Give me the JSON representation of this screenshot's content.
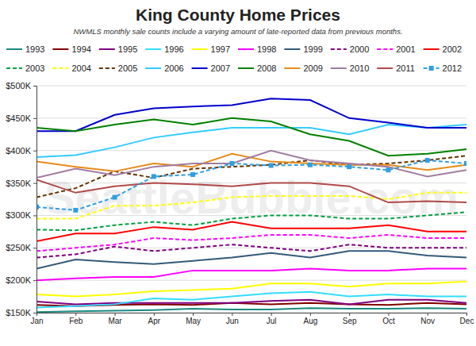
{
  "chart_data": {
    "type": "line",
    "title": "King County Home Prices",
    "subtitle": "NWMLS monthly sale counts include a varying amount of late-reported data from previous months.",
    "annotations": [
      "SeattleBubble.com"
    ],
    "categories": [
      "Jan",
      "Feb",
      "Mar",
      "Apr",
      "May",
      "Jun",
      "Jul",
      "Aug",
      "Sep",
      "Oct",
      "Nov",
      "Dec"
    ],
    "ylim": [
      150000,
      500000
    ],
    "yticks": [
      {
        "value": 150000,
        "label": "$150K"
      },
      {
        "value": 200000,
        "label": "$200K"
      },
      {
        "value": 250000,
        "label": "$250K"
      },
      {
        "value": 300000,
        "label": "$300K"
      },
      {
        "value": 350000,
        "label": "$350K"
      },
      {
        "value": 400000,
        "label": "$400K"
      },
      {
        "value": 450000,
        "label": "$450K"
      },
      {
        "value": 500000,
        "label": "$500K"
      }
    ],
    "grid": true,
    "legend": "top",
    "series": [
      {
        "name": "1993",
        "color": "#1a8a80",
        "line_style": "solid",
        "values": [
          151000,
          152000,
          153000,
          154000,
          156000,
          155000,
          155000,
          157000,
          156000,
          156000,
          157000,
          156000
        ]
      },
      {
        "name": "1994",
        "color": "#800000",
        "line_style": "solid",
        "values": [
          162000,
          160000,
          162000,
          163000,
          162000,
          165000,
          163000,
          165000,
          163000,
          162000,
          165000,
          163000
        ]
      },
      {
        "name": "1995",
        "color": "#800080",
        "line_style": "solid",
        "values": [
          167000,
          163000,
          165000,
          165000,
          165000,
          165000,
          168000,
          170000,
          163000,
          170000,
          170000,
          165000
        ]
      },
      {
        "name": "1996",
        "color": "#33ddff",
        "line_style": "solid",
        "values": [
          158000,
          160000,
          163000,
          172000,
          170000,
          175000,
          180000,
          182000,
          175000,
          178000,
          175000,
          175000
        ]
      },
      {
        "name": "1997",
        "color": "#ffff00",
        "line_style": "solid",
        "values": [
          178000,
          175000,
          178000,
          183000,
          185000,
          187000,
          195000,
          195000,
          190000,
          195000,
          195000,
          198000
        ]
      },
      {
        "name": "1998",
        "color": "#ff00ff",
        "line_style": "solid",
        "values": [
          200000,
          203000,
          205000,
          205000,
          215000,
          215000,
          215000,
          218000,
          215000,
          215000,
          218000,
          218000
        ]
      },
      {
        "name": "1999",
        "color": "#34597a",
        "line_style": "solid",
        "values": [
          218000,
          232000,
          228000,
          225000,
          230000,
          235000,
          242000,
          235000,
          245000,
          245000,
          238000,
          235000
        ]
      },
      {
        "name": "2000",
        "color": "#800080",
        "line_style": "dashed",
        "values": [
          235000,
          240000,
          252000,
          245000,
          250000,
          255000,
          250000,
          245000,
          255000,
          250000,
          250000,
          250000
        ]
      },
      {
        "name": "2001",
        "color": "#ff00ff",
        "line_style": "dashed",
        "values": [
          245000,
          250000,
          255000,
          265000,
          262000,
          265000,
          270000,
          270000,
          265000,
          270000,
          265000,
          265000
        ]
      },
      {
        "name": "2002",
        "color": "#ff0000",
        "line_style": "solid",
        "values": [
          260000,
          272000,
          272000,
          282000,
          278000,
          290000,
          280000,
          280000,
          280000,
          285000,
          275000,
          275000
        ]
      },
      {
        "name": "2003",
        "color": "#00a040",
        "line_style": "dashed",
        "values": [
          278000,
          277000,
          285000,
          290000,
          285000,
          295000,
          300000,
          300000,
          295000,
          295000,
          300000,
          305000
        ]
      },
      {
        "name": "2004",
        "color": "#ffff00",
        "line_style": "dashed",
        "values": [
          295000,
          295000,
          315000,
          315000,
          320000,
          328000,
          330000,
          330000,
          330000,
          325000,
          335000,
          335000
        ]
      },
      {
        "name": "2005",
        "color": "#663300",
        "line_style": "dashed",
        "values": [
          328000,
          342000,
          368000,
          358000,
          372000,
          375000,
          378000,
          385000,
          378000,
          380000,
          385000,
          392000
        ]
      },
      {
        "name": "2006",
        "color": "#33ccff",
        "line_style": "solid",
        "values": [
          390000,
          393000,
          405000,
          420000,
          428000,
          435000,
          435000,
          435000,
          425000,
          440000,
          435000,
          440000
        ]
      },
      {
        "name": "2007",
        "color": "#0000cc",
        "line_style": "solid",
        "values": [
          430000,
          430000,
          455000,
          465000,
          468000,
          470000,
          480000,
          478000,
          450000,
          443000,
          435000,
          435000
        ]
      },
      {
        "name": "2008",
        "color": "#008000",
        "line_style": "solid",
        "values": [
          435000,
          430000,
          440000,
          448000,
          440000,
          450000,
          445000,
          425000,
          415000,
          392000,
          395000,
          402000
        ]
      },
      {
        "name": "2009",
        "color": "#e68a1a",
        "line_style": "solid",
        "values": [
          383000,
          375000,
          368000,
          380000,
          375000,
          395000,
          383000,
          380000,
          378000,
          378000,
          370000,
          378000
        ]
      },
      {
        "name": "2010",
        "color": "#a07ca0",
        "line_style": "solid",
        "values": [
          358000,
          372000,
          362000,
          375000,
          380000,
          380000,
          400000,
          385000,
          380000,
          375000,
          360000,
          370000
        ]
      },
      {
        "name": "2011",
        "color": "#b04a4a",
        "line_style": "solid",
        "values": [
          355000,
          335000,
          345000,
          350000,
          348000,
          345000,
          350000,
          350000,
          345000,
          320000,
          322000,
          320000
        ]
      },
      {
        "name": "2012",
        "color": "#2f9fe0",
        "line_style": "dashed",
        "marker": "square",
        "values": [
          313000,
          308000,
          328000,
          360000,
          363000,
          380000,
          377000,
          378000,
          375000,
          370000,
          385000,
          380000
        ]
      }
    ]
  }
}
